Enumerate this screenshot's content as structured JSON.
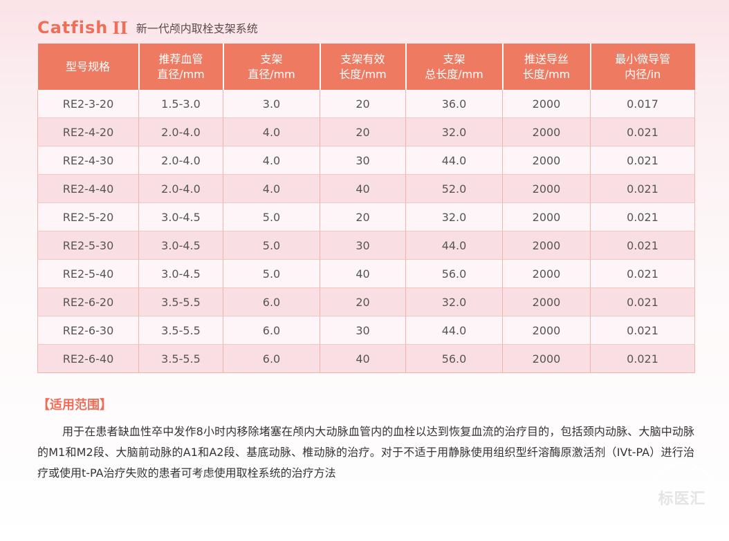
{
  "header": {
    "brand": "Catfish",
    "model_suffix": "II",
    "subtitle": "新一代颅内取栓支架系统"
  },
  "table": {
    "headers": [
      "型号规格",
      "推荐血管\n直径/mm",
      "支架\n直径/mm",
      "支架有效\n长度/mm",
      "支架\n总长度/mm",
      "推送导丝\n长度/mm",
      "最小微导管\n内径/in"
    ],
    "rows": [
      [
        "RE2-3-20",
        "1.5-3.0",
        "3.0",
        "20",
        "36.0",
        "2000",
        "0.017"
      ],
      [
        "RE2-4-20",
        "2.0-4.0",
        "4.0",
        "20",
        "32.0",
        "2000",
        "0.021"
      ],
      [
        "RE2-4-30",
        "2.0-4.0",
        "4.0",
        "30",
        "44.0",
        "2000",
        "0.021"
      ],
      [
        "RE2-4-40",
        "2.0-4.0",
        "4.0",
        "40",
        "52.0",
        "2000",
        "0.021"
      ],
      [
        "RE2-5-20",
        "3.0-4.5",
        "5.0",
        "20",
        "32.0",
        "2000",
        "0.021"
      ],
      [
        "RE2-5-30",
        "3.0-4.5",
        "5.0",
        "30",
        "44.0",
        "2000",
        "0.021"
      ],
      [
        "RE2-5-40",
        "3.0-4.5",
        "5.0",
        "40",
        "56.0",
        "2000",
        "0.021"
      ],
      [
        "RE2-6-20",
        "3.5-5.5",
        "6.0",
        "20",
        "32.0",
        "2000",
        "0.021"
      ],
      [
        "RE2-6-30",
        "3.5-5.5",
        "6.0",
        "30",
        "44.0",
        "2000",
        "0.021"
      ],
      [
        "RE2-6-40",
        "3.5-5.5",
        "6.0",
        "40",
        "56.0",
        "2000",
        "0.021"
      ]
    ]
  },
  "scope": {
    "title": "【适用范围】",
    "text": "用于在患者缺血性卒中发作8小时内移除堵塞在颅内大动脉血管内的血栓以达到恢复血流的治疗目的，包括颈内动脉、大脑中动脉的M1和M2段、大脑前动脉的A1和A2段、基底动脉、椎动脉的治疗。对于不适于用静脉使用组织型纤溶酶原激活剂（IVt-PA）进行治疗或使用t-PA治疗失败的患者可考虑使用取栓系统的治疗方法"
  },
  "watermark": {
    "text": "标医汇"
  },
  "colors": {
    "accent": "#ef6e58",
    "header_bg": "#ef7a62",
    "row_odd": "#fdf5f7",
    "row_even": "#f9dfe3"
  }
}
